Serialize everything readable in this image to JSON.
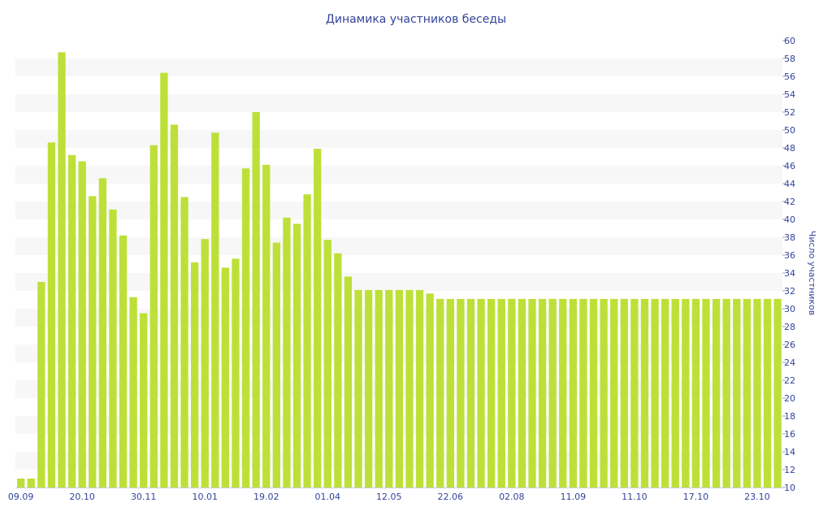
{
  "chart_data": {
    "type": "bar",
    "title": "Динамика участников беседы",
    "xlabel": "",
    "ylabel": "Число участников",
    "ylim": [
      10,
      60
    ],
    "yticks": [
      10,
      12,
      14,
      16,
      18,
      20,
      22,
      24,
      26,
      28,
      30,
      32,
      34,
      36,
      38,
      40,
      42,
      44,
      46,
      48,
      50,
      52,
      54,
      56,
      58,
      60
    ],
    "y_axis_side": "right",
    "x_tick_labels": [
      {
        "label": "09.09",
        "index": 0
      },
      {
        "label": "20.10",
        "index": 6
      },
      {
        "label": "30.11",
        "index": 12
      },
      {
        "label": "10.01",
        "index": 18
      },
      {
        "label": "19.02",
        "index": 24
      },
      {
        "label": "01.04",
        "index": 30
      },
      {
        "label": "12.05",
        "index": 36
      },
      {
        "label": "22.06",
        "index": 42
      },
      {
        "label": "02.08",
        "index": 48
      },
      {
        "label": "11.09",
        "index": 54
      },
      {
        "label": "11.10",
        "index": 60
      },
      {
        "label": "17.10",
        "index": 66
      },
      {
        "label": "23.10",
        "index": 72
      }
    ],
    "values": [
      11,
      11,
      33,
      48.6,
      58.7,
      47.2,
      46.5,
      42.6,
      44.6,
      41.1,
      38.2,
      31.3,
      29.5,
      48.3,
      56.4,
      50.6,
      42.5,
      35.2,
      37.8,
      49.7,
      34.6,
      35.6,
      45.7,
      52,
      46.1,
      37.4,
      40.2,
      39.5,
      42.8,
      47.9,
      37.7,
      36.2,
      33.6,
      32.1,
      32.1,
      32.1,
      32.1,
      32.1,
      32.1,
      32.1,
      31.7,
      31.1,
      31.1,
      31.1,
      31.1,
      31.1,
      31.1,
      31.1,
      31.1,
      31.1,
      31.1,
      31.1,
      31.1,
      31.1,
      31.1,
      31.1,
      31.1,
      31.1,
      31.1,
      31.1,
      31.1,
      31.1,
      31.1,
      31.1,
      31.1,
      31.1,
      31.1,
      31.1,
      31.1,
      31.1,
      31.1,
      31.1,
      31.1,
      31.1,
      31.1
    ],
    "bar_color": "#bde038",
    "band_color": "#f7f7f7",
    "text_color": "#33449a",
    "grid": "alternating horizontal bands"
  }
}
